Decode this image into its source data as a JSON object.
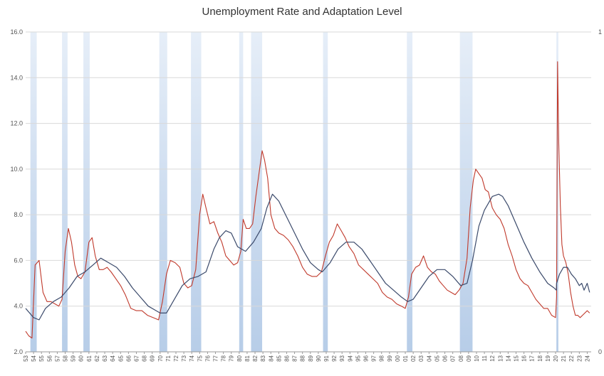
{
  "chart_data": {
    "type": "line",
    "title": "Unemployment Rate and Adaptation Level",
    "xlabel": "",
    "ylabel": "",
    "xlim": [
      1953,
      2024.5
    ],
    "ylim": [
      2.0,
      16.0
    ],
    "y_ticks": [
      "2.0",
      "4.0",
      "6.0",
      "8.0",
      "10.0",
      "12.0",
      "14.0",
      "16.0"
    ],
    "y2_ticks": [
      "0",
      "1"
    ],
    "x_tick_labels": [
      "53",
      "54",
      "55",
      "56",
      "57",
      "58",
      "59",
      "60",
      "61",
      "62",
      "63",
      "64",
      "65",
      "66",
      "67",
      "68",
      "69",
      "70",
      "71",
      "72",
      "73",
      "74",
      "75",
      "76",
      "77",
      "78",
      "79",
      "80",
      "81",
      "82",
      "83",
      "84",
      "85",
      "86",
      "87",
      "88",
      "89",
      "90",
      "91",
      "92",
      "93",
      "94",
      "95",
      "96",
      "97",
      "98",
      "99",
      "00",
      "01",
      "02",
      "03",
      "04",
      "05",
      "06",
      "07",
      "08",
      "09",
      "10",
      "11",
      "12",
      "13",
      "14",
      "15",
      "16",
      "17",
      "18",
      "19",
      "20",
      "21",
      "22",
      "23",
      "24"
    ],
    "grid": true,
    "recessions": [
      [
        1953.6,
        1954.4
      ],
      [
        1957.6,
        1958.3
      ],
      [
        1960.3,
        1961.1
      ],
      [
        1969.9,
        1970.9
      ],
      [
        1973.9,
        1975.2
      ],
      [
        1980.0,
        1980.5
      ],
      [
        1981.5,
        1982.9
      ],
      [
        1990.6,
        1991.2
      ],
      [
        2001.2,
        2001.9
      ],
      [
        2007.9,
        2009.5
      ],
      [
        2020.1,
        2020.35
      ]
    ],
    "series": [
      {
        "color": "#c0392b",
        "x": [
          1953.0,
          1953.4,
          1953.8,
          1954.2,
          1954.7,
          1955.2,
          1955.7,
          1956.2,
          1956.7,
          1957.2,
          1957.6,
          1958.0,
          1958.4,
          1958.8,
          1959.2,
          1959.6,
          1960.0,
          1960.5,
          1961.0,
          1961.4,
          1961.8,
          1962.3,
          1962.8,
          1963.3,
          1963.8,
          1964.4,
          1965.0,
          1965.6,
          1966.3,
          1967.0,
          1967.7,
          1968.4,
          1969.1,
          1969.8,
          1970.3,
          1970.8,
          1971.3,
          1971.9,
          1972.5,
          1973.0,
          1973.5,
          1974.0,
          1974.5,
          1975.0,
          1975.4,
          1975.8,
          1976.3,
          1976.8,
          1977.3,
          1977.8,
          1978.3,
          1978.8,
          1979.3,
          1979.8,
          1980.2,
          1980.5,
          1980.9,
          1981.3,
          1981.7,
          1982.1,
          1982.5,
          1982.9,
          1983.2,
          1983.6,
          1984.0,
          1984.5,
          1985.0,
          1985.6,
          1986.2,
          1986.8,
          1987.4,
          1988.0,
          1988.6,
          1989.2,
          1989.8,
          1990.4,
          1990.9,
          1991.4,
          1991.9,
          1992.4,
          1992.9,
          1993.4,
          1993.9,
          1994.5,
          1995.1,
          1995.7,
          1996.3,
          1996.9,
          1997.5,
          1998.1,
          1998.7,
          1999.3,
          1999.9,
          2000.5,
          2001.0,
          2001.4,
          2001.8,
          2002.3,
          2002.8,
          2003.3,
          2003.8,
          2004.3,
          2004.8,
          2005.3,
          2005.8,
          2006.3,
          2006.8,
          2007.3,
          2007.8,
          2008.3,
          2008.8,
          2009.2,
          2009.6,
          2009.9,
          2010.3,
          2010.7,
          2011.1,
          2011.5,
          2012.0,
          2012.5,
          2013.0,
          2013.5,
          2014.0,
          2014.5,
          2015.0,
          2015.5,
          2016.0,
          2016.5,
          2017.0,
          2017.5,
          2018.0,
          2018.5,
          2019.0,
          2019.5,
          2020.0,
          2020.12,
          2020.25,
          2020.4,
          2020.6,
          2020.8,
          2021.0,
          2021.3,
          2021.6,
          2021.9,
          2022.2,
          2022.5,
          2022.8,
          2023.1,
          2023.4,
          2023.7,
          2024.0,
          2024.3
        ],
        "values": [
          2.9,
          2.7,
          2.6,
          5.8,
          6.0,
          4.6,
          4.2,
          4.2,
          4.1,
          4.0,
          4.3,
          6.4,
          7.4,
          6.8,
          5.8,
          5.3,
          5.2,
          5.5,
          6.8,
          7.0,
          6.2,
          5.6,
          5.6,
          5.7,
          5.5,
          5.2,
          4.9,
          4.5,
          3.9,
          3.8,
          3.8,
          3.6,
          3.5,
          3.4,
          4.2,
          5.4,
          6.0,
          5.9,
          5.7,
          5.0,
          4.8,
          4.9,
          5.6,
          8.0,
          8.9,
          8.3,
          7.6,
          7.7,
          7.2,
          6.8,
          6.2,
          6.0,
          5.8,
          5.9,
          6.4,
          7.8,
          7.4,
          7.4,
          7.6,
          8.8,
          9.8,
          10.8,
          10.4,
          9.6,
          8.0,
          7.4,
          7.2,
          7.1,
          6.9,
          6.6,
          6.2,
          5.7,
          5.4,
          5.3,
          5.3,
          5.5,
          6.2,
          6.8,
          7.1,
          7.6,
          7.3,
          7.0,
          6.6,
          6.3,
          5.8,
          5.6,
          5.4,
          5.2,
          5.0,
          4.6,
          4.4,
          4.3,
          4.1,
          4.0,
          3.9,
          4.4,
          5.4,
          5.7,
          5.8,
          6.2,
          5.7,
          5.5,
          5.4,
          5.1,
          4.9,
          4.7,
          4.6,
          4.5,
          4.7,
          5.0,
          6.1,
          8.3,
          9.5,
          10.0,
          9.8,
          9.6,
          9.1,
          9.0,
          8.3,
          8.0,
          7.8,
          7.4,
          6.7,
          6.2,
          5.6,
          5.2,
          5.0,
          4.9,
          4.6,
          4.3,
          4.1,
          3.9,
          3.9,
          3.6,
          3.5,
          4.4,
          14.7,
          11.1,
          8.4,
          6.7,
          6.2,
          5.9,
          5.4,
          4.6,
          4.0,
          3.6,
          3.6,
          3.5,
          3.6,
          3.7,
          3.8,
          3.7
        ]
      },
      {
        "color": "#3b4a6b",
        "x": [
          1953.0,
          1954.0,
          1954.7,
          1955.5,
          1956.5,
          1957.5,
          1958.5,
          1959.5,
          1960.5,
          1961.5,
          1962.5,
          1963.5,
          1964.5,
          1965.5,
          1966.5,
          1967.5,
          1968.5,
          1969.5,
          1970.0,
          1970.8,
          1971.8,
          1972.8,
          1973.8,
          1974.8,
          1975.8,
          1976.8,
          1977.5,
          1978.3,
          1979.0,
          1979.8,
          1980.8,
          1981.8,
          1982.8,
          1983.5,
          1984.2,
          1985.0,
          1986.0,
          1987.0,
          1988.0,
          1989.0,
          1990.0,
          1990.5,
          1991.5,
          1992.5,
          1993.5,
          1994.5,
          1995.5,
          1996.5,
          1997.5,
          1998.5,
          1999.5,
          2000.5,
          2001.3,
          2002.0,
          2003.0,
          2004.0,
          2005.0,
          2006.0,
          2007.0,
          2008.0,
          2008.8,
          2009.5,
          2010.3,
          2011.0,
          2012.0,
          2012.8,
          2013.3,
          2014.0,
          2015.0,
          2016.0,
          2017.0,
          2018.0,
          2019.0,
          2019.8,
          2020.1,
          2020.12,
          2020.5,
          2021.0,
          2021.5,
          2022.0,
          2022.5,
          2023.0,
          2023.3,
          2023.6,
          2024.0,
          2024.3
        ],
        "values": [
          3.9,
          3.5,
          3.4,
          3.9,
          4.2,
          4.4,
          4.8,
          5.3,
          5.5,
          5.8,
          6.1,
          5.9,
          5.7,
          5.3,
          4.8,
          4.4,
          4.0,
          3.8,
          3.7,
          3.7,
          4.3,
          4.9,
          5.2,
          5.3,
          5.5,
          6.5,
          7.0,
          7.3,
          7.2,
          6.6,
          6.4,
          6.8,
          7.4,
          8.3,
          8.9,
          8.6,
          7.9,
          7.2,
          6.5,
          5.9,
          5.6,
          5.5,
          5.9,
          6.5,
          6.8,
          6.8,
          6.5,
          6.0,
          5.5,
          5.0,
          4.7,
          4.4,
          4.2,
          4.3,
          4.8,
          5.3,
          5.6,
          5.6,
          5.3,
          4.9,
          5.0,
          6.0,
          7.5,
          8.2,
          8.8,
          8.9,
          8.8,
          8.4,
          7.6,
          6.8,
          6.1,
          5.5,
          5.0,
          4.8,
          4.7,
          5.0,
          5.4,
          5.7,
          5.7,
          5.4,
          5.2,
          4.9,
          5.0,
          4.7,
          5.0,
          4.6
        ]
      }
    ]
  }
}
